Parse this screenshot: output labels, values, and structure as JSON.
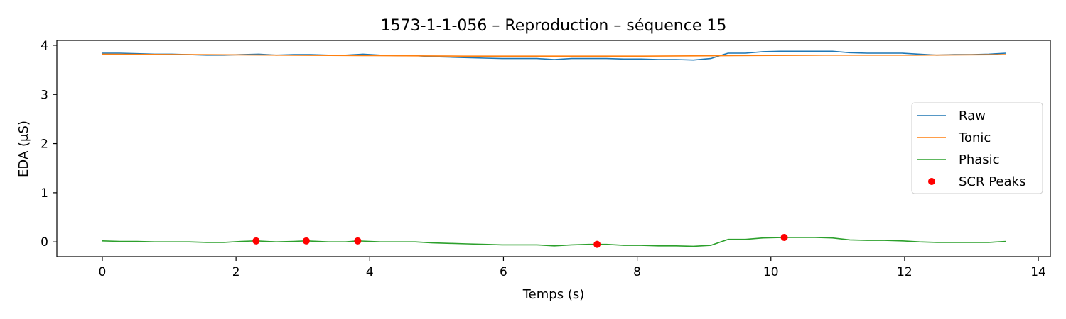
{
  "chart_data": {
    "type": "line",
    "title": "1573-1-1-056 – Reproduction – séquence 15",
    "xlabel": "Temps (s)",
    "ylabel": "EDA (µS)",
    "xlim": [
      -0.68,
      14.18
    ],
    "ylim": [
      -0.3,
      4.1
    ],
    "xticks": [
      0,
      2,
      4,
      6,
      8,
      10,
      12,
      14
    ],
    "yticks": [
      0,
      1,
      2,
      3,
      4
    ],
    "grid": false,
    "legend_position": "center-right",
    "series": [
      {
        "name": "Raw",
        "color": "#1f77b4",
        "x": [
          0,
          0.26,
          0.52,
          0.78,
          1.04,
          1.3,
          1.56,
          1.82,
          2.08,
          2.34,
          2.6,
          2.86,
          3.12,
          3.38,
          3.64,
          3.9,
          4.16,
          4.42,
          4.68,
          4.94,
          5.2,
          5.46,
          5.72,
          5.98,
          6.24,
          6.5,
          6.76,
          7.02,
          7.28,
          7.54,
          7.8,
          8.06,
          8.32,
          8.58,
          8.84,
          9.1,
          9.36,
          9.62,
          9.88,
          10.14,
          10.4,
          10.66,
          10.92,
          11.18,
          11.44,
          11.7,
          11.96,
          12.22,
          12.48,
          12.74,
          13.0,
          13.26,
          13.52
        ],
        "y": [
          3.84,
          3.84,
          3.83,
          3.82,
          3.82,
          3.81,
          3.8,
          3.8,
          3.81,
          3.82,
          3.8,
          3.81,
          3.81,
          3.8,
          3.8,
          3.82,
          3.8,
          3.79,
          3.79,
          3.77,
          3.76,
          3.75,
          3.74,
          3.73,
          3.73,
          3.73,
          3.71,
          3.73,
          3.73,
          3.73,
          3.72,
          3.72,
          3.71,
          3.71,
          3.7,
          3.73,
          3.84,
          3.84,
          3.87,
          3.88,
          3.88,
          3.88,
          3.88,
          3.85,
          3.84,
          3.84,
          3.84,
          3.82,
          3.8,
          3.81,
          3.81,
          3.82,
          3.84
        ]
      },
      {
        "name": "Tonic",
        "color": "#ff7f0e",
        "x": [
          0,
          1.35,
          2.7,
          4.05,
          5.4,
          6.75,
          8.1,
          9.45,
          10.8,
          12.15,
          13.52
        ],
        "y": [
          3.82,
          3.81,
          3.8,
          3.79,
          3.78,
          3.78,
          3.78,
          3.79,
          3.8,
          3.8,
          3.81
        ]
      },
      {
        "name": "Phasic",
        "color": "#2ca02c",
        "x": [
          0,
          0.26,
          0.52,
          0.78,
          1.04,
          1.3,
          1.56,
          1.82,
          2.08,
          2.3,
          2.6,
          2.86,
          3.05,
          3.38,
          3.64,
          3.82,
          4.16,
          4.42,
          4.68,
          4.94,
          5.2,
          5.46,
          5.72,
          5.98,
          6.24,
          6.5,
          6.76,
          7.02,
          7.28,
          7.4,
          7.54,
          7.8,
          8.06,
          8.32,
          8.58,
          8.84,
          9.1,
          9.36,
          9.62,
          9.88,
          10.2,
          10.4,
          10.66,
          10.92,
          11.18,
          11.44,
          11.7,
          11.96,
          12.22,
          12.48,
          12.74,
          13.0,
          13.26,
          13.52
        ],
        "y": [
          0.02,
          0.01,
          0.01,
          0.0,
          0.0,
          0.0,
          -0.01,
          -0.01,
          0.01,
          0.02,
          0.0,
          0.01,
          0.02,
          0.0,
          0.0,
          0.02,
          0.0,
          0.0,
          0.0,
          -0.02,
          -0.03,
          -0.04,
          -0.05,
          -0.06,
          -0.06,
          -0.06,
          -0.08,
          -0.06,
          -0.05,
          -0.05,
          -0.05,
          -0.07,
          -0.07,
          -0.08,
          -0.08,
          -0.09,
          -0.07,
          0.05,
          0.05,
          0.08,
          0.09,
          0.09,
          0.09,
          0.08,
          0.04,
          0.03,
          0.03,
          0.02,
          0.0,
          -0.01,
          -0.01,
          -0.01,
          -0.01,
          0.01
        ]
      }
    ],
    "scatter": {
      "name": "SCR Peaks",
      "color": "#ff0000",
      "x": [
        2.3,
        3.05,
        3.82,
        7.4,
        10.2
      ],
      "y": [
        0.02,
        0.02,
        0.02,
        -0.05,
        0.09
      ]
    }
  }
}
